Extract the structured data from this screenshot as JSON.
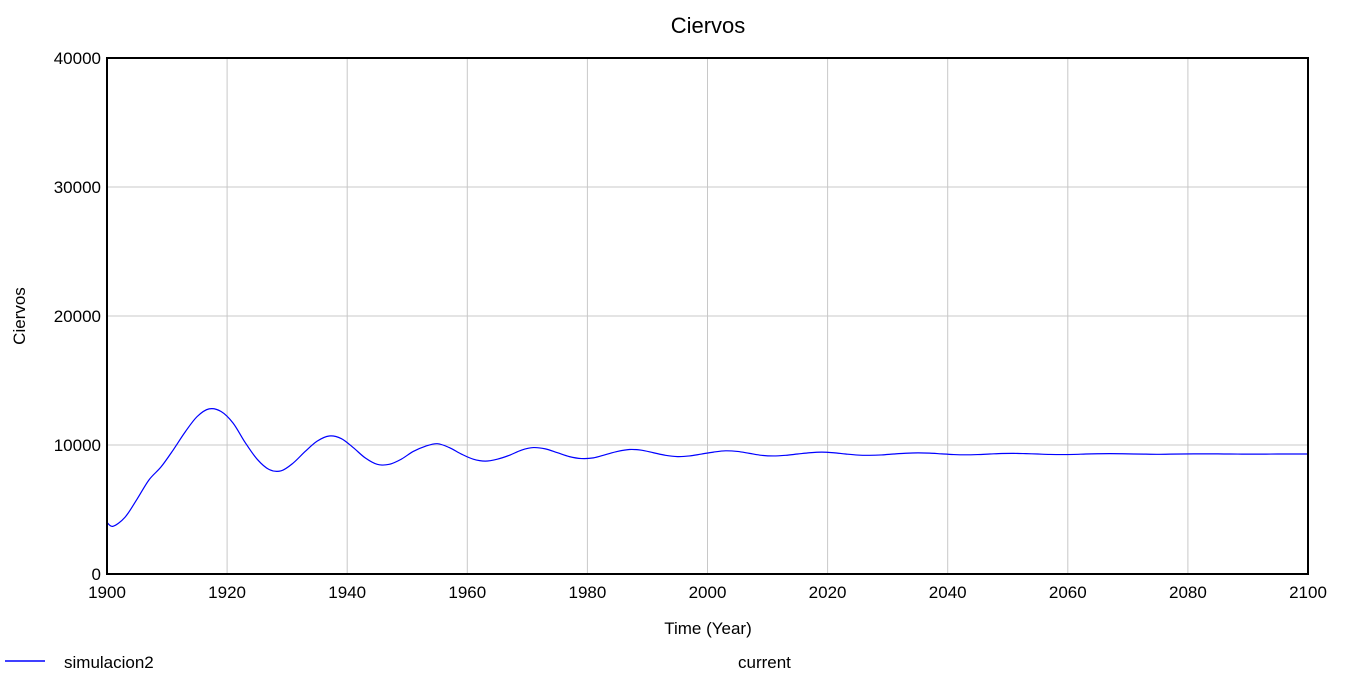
{
  "chart_data": {
    "type": "line",
    "title": "Ciervos",
    "xlabel": "Time (Year)",
    "ylabel": "Ciervos",
    "xlim": [
      1900,
      2100
    ],
    "ylim": [
      0,
      40000
    ],
    "x_ticks": [
      "1900",
      "1920",
      "1940",
      "1960",
      "1980",
      "2000",
      "2020",
      "2040",
      "2060",
      "2080",
      "2100"
    ],
    "y_ticks": [
      "0",
      "10000",
      "20000",
      "30000",
      "40000"
    ],
    "grid": true,
    "legend_position": "bottom",
    "colors": {
      "series": "#0000ff",
      "grid": "#c8c8c8",
      "frame": "#000000"
    },
    "series": [
      {
        "name": "simulacion2",
        "x": [
          1900,
          1901,
          1903,
          1905,
          1907,
          1909,
          1911,
          1913,
          1915,
          1917,
          1919,
          1921,
          1923,
          1925,
          1927,
          1929,
          1931,
          1933,
          1935,
          1937,
          1939,
          1941,
          1943,
          1945,
          1947,
          1949,
          1951,
          1953,
          1955,
          1957,
          1959,
          1961,
          1963,
          1965,
          1967,
          1969,
          1971,
          1973,
          1975,
          1977,
          1979,
          1981,
          1983,
          1985,
          1987,
          1989,
          1991,
          1993,
          1995,
          1997,
          1999,
          2001,
          2003,
          2005,
          2007,
          2009,
          2011,
          2013,
          2015,
          2017,
          2019,
          2021,
          2023,
          2025,
          2027,
          2029,
          2031,
          2033,
          2035,
          2037,
          2039,
          2041,
          2043,
          2045,
          2047,
          2049,
          2051,
          2053,
          2055,
          2057,
          2059,
          2061,
          2063,
          2065,
          2067,
          2069,
          2071,
          2073,
          2075,
          2077,
          2079,
          2081,
          2083,
          2085,
          2087,
          2089,
          2091,
          2093,
          2095,
          2097,
          2099,
          2100
        ],
        "values": [
          4000,
          3700,
          4400,
          5800,
          7300,
          8300,
          9600,
          11000,
          12200,
          12800,
          12600,
          11700,
          10200,
          8900,
          8100,
          8000,
          8600,
          9500,
          10300,
          10700,
          10500,
          9800,
          9000,
          8500,
          8500,
          8900,
          9500,
          9900,
          10100,
          9800,
          9300,
          8900,
          8750,
          8900,
          9200,
          9600,
          9800,
          9700,
          9400,
          9100,
          8950,
          9000,
          9250,
          9500,
          9650,
          9600,
          9400,
          9200,
          9100,
          9150,
          9300,
          9450,
          9550,
          9500,
          9350,
          9200,
          9150,
          9200,
          9300,
          9400,
          9450,
          9400,
          9300,
          9220,
          9200,
          9230,
          9300,
          9360,
          9390,
          9370,
          9310,
          9260,
          9240,
          9260,
          9300,
          9340,
          9350,
          9330,
          9300,
          9270,
          9260,
          9270,
          9300,
          9320,
          9330,
          9320,
          9300,
          9290,
          9280,
          9290,
          9300,
          9310,
          9315,
          9310,
          9300,
          9295,
          9290,
          9295,
          9300,
          9305,
          9300,
          9300
        ]
      }
    ],
    "legend": [
      {
        "name": "simulacion2",
        "line": true
      },
      {
        "name": "current",
        "line": false
      }
    ]
  }
}
